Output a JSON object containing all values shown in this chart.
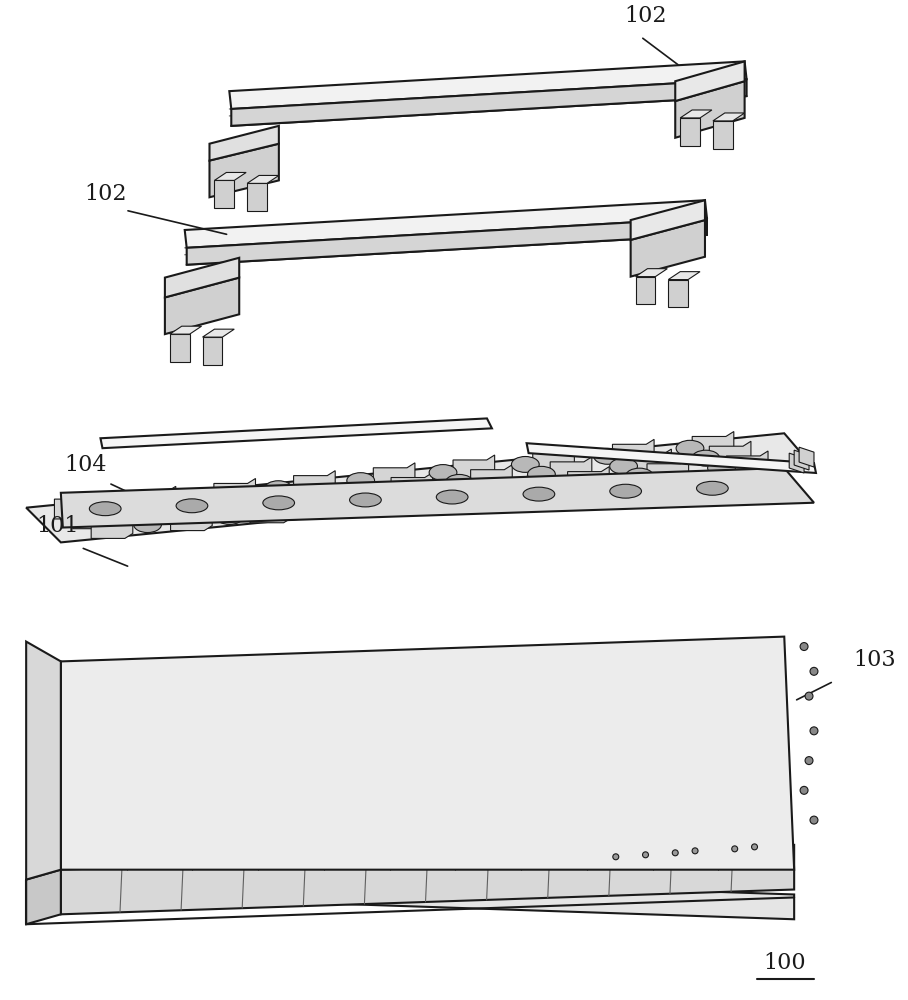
{
  "bg_color": "#ffffff",
  "line_color": "#1a1a1a",
  "light_gray": "#d0d0d0",
  "mid_gray": "#a0a0a0",
  "dark_gray": "#606060",
  "label_101": "101",
  "label_102": "102",
  "label_103": "103",
  "label_104": "104",
  "label_100": "100",
  "figsize": [
    9.08,
    10.0
  ],
  "dpi": 100
}
